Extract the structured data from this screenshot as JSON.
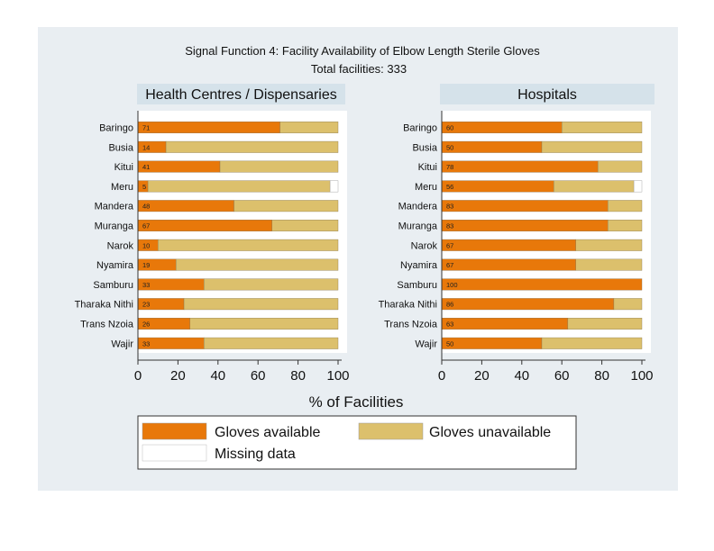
{
  "chart_data": {
    "type": "bar",
    "orientation": "horizontal",
    "stacked": true,
    "title": "Signal Function 4: Facility Availability of Elbow Length Sterile Gloves",
    "subtitle": "Total facilities: 333",
    "xlabel": "% of Facilities",
    "xlim": [
      0,
      100
    ],
    "xticks": [
      0,
      20,
      40,
      60,
      80,
      100
    ],
    "categories": [
      "Baringo",
      "Busia",
      "Kitui",
      "Meru",
      "Mandera",
      "Muranga",
      "Narok",
      "Nyamira",
      "Samburu",
      "Tharaka Nithi",
      "Trans Nzoia",
      "Wajir"
    ],
    "colors": {
      "available": "#e8780a",
      "unavailable": "#dcc06c",
      "missing": "#ffffff",
      "panel_header": "#d5e2ea",
      "plot_bg": "#ffffff",
      "figure_bg": "#e9eef2"
    },
    "panels": [
      {
        "title": "Health Centres / Dispensaries",
        "available": [
          71,
          14,
          41,
          5,
          48,
          67,
          10,
          19,
          33,
          23,
          26,
          33
        ],
        "missing": [
          0,
          0,
          0,
          4,
          0,
          0,
          0,
          0,
          0,
          0,
          0,
          0
        ]
      },
      {
        "title": "Hospitals",
        "available": [
          60,
          50,
          78,
          56,
          83,
          83,
          67,
          67,
          100,
          86,
          63,
          50
        ],
        "missing": [
          0,
          0,
          0,
          4,
          0,
          0,
          0,
          0,
          0,
          0,
          0,
          0
        ]
      }
    ],
    "legend": {
      "position": "bottom",
      "entries": [
        "Gloves available",
        "Gloves unavailable",
        "Missing data"
      ]
    }
  }
}
